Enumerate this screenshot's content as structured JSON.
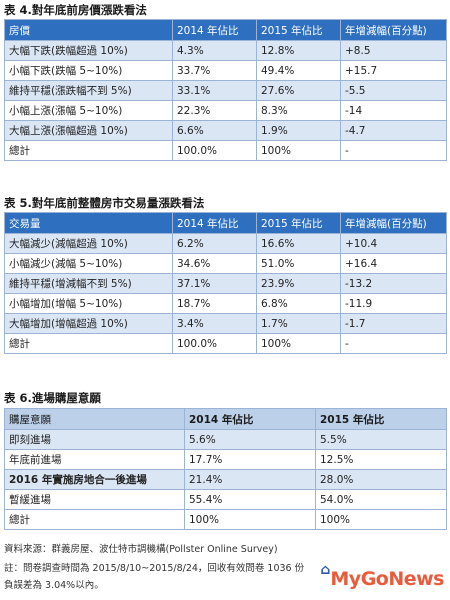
{
  "table4": {
    "caption": "表 4.對年底前房價漲跌看法",
    "headers": [
      "房價",
      "2014 年佔比",
      "2015 年佔比",
      "年增減幅(百分點)"
    ],
    "rows": [
      [
        "大幅下跌(跌幅超過 10%)",
        "4.3%",
        "12.8%",
        "+8.5"
      ],
      [
        "小幅下跌(跌幅 5~10%)",
        "33.7%",
        "49.4%",
        "+15.7"
      ],
      [
        "維持平穩(漲跌幅不到 5%)",
        "33.1%",
        "27.6%",
        "-5.5"
      ],
      [
        "小幅上漲(漲幅 5~10%)",
        "22.3%",
        "8.3%",
        "-14"
      ],
      [
        "大幅上漲(漲幅超過 10%)",
        "6.6%",
        "1.9%",
        "-4.7"
      ],
      [
        "總計",
        "100.0%",
        "100%",
        "-"
      ]
    ]
  },
  "table5": {
    "caption": "表 5.對年底前整體房市交易量漲跌看法",
    "headers": [
      "交易量",
      "2014 年佔比",
      "2015 年佔比",
      "年增減幅(百分點)"
    ],
    "rows": [
      [
        "大幅減少(減幅超過 10%)",
        "6.2%",
        "16.6%",
        "+10.4"
      ],
      [
        "小幅減少(減幅 5~10%)",
        "34.6%",
        "51.0%",
        "+16.4"
      ],
      [
        "維持平穩(增減幅不到 5%)",
        "37.1%",
        "23.9%",
        "-13.2"
      ],
      [
        "小幅增加(增幅 5~10%)",
        "18.7%",
        "6.8%",
        "-11.9"
      ],
      [
        "大幅增加(增幅超過 10%)",
        "3.4%",
        "1.7%",
        "-1.7"
      ],
      [
        "總計",
        "100.0%",
        "100%",
        "-"
      ]
    ]
  },
  "table6": {
    "caption": "表 6.進場購屋意願",
    "headers": [
      "購屋意願",
      "2014 年佔比",
      "2015 年佔比"
    ],
    "rows": [
      [
        "即刻進場",
        "5.6%",
        "5.5%"
      ],
      [
        "年底前進場",
        "17.7%",
        "12.5%"
      ],
      [
        "2016 年實施房地合一後進場",
        "21.4%",
        "28.0%"
      ],
      [
        "暫緩進場",
        "55.4%",
        "54.0%"
      ],
      [
        "總計",
        "100%",
        "100%"
      ]
    ]
  },
  "source": {
    "line1": "資料來源：群義房屋、波仕特市調機構(Pollster Online Survey)",
    "line2": "註：問卷調查時間為 2015/8/10~2015/8/24，回收有效問卷 1036 份",
    "line3": "負誤差為 3.04%以內。"
  },
  "logo": {
    "text_my": "My",
    "text_go": "Go",
    "text_news": "News",
    "icon": "house-icon",
    "color": "#e74f2d"
  }
}
